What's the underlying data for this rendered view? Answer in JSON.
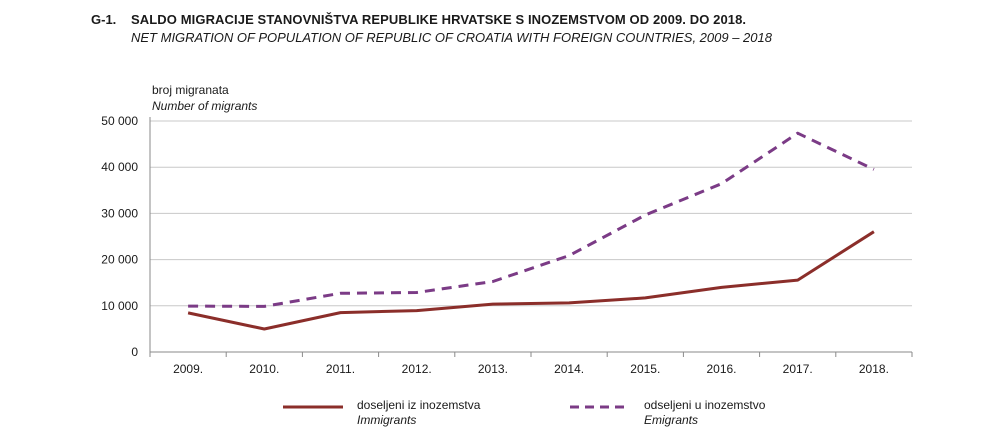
{
  "header": {
    "figure_label": "G-1.",
    "title": "SALDO MIGRACIJE STANOVNIŠTVA REPUBLIKE HRVATSKE S INOZEMSTVOM OD 2009. DO 2018.",
    "subtitle": "NET MIGRATION OF POPULATION OF REPUBLIC OF CROATIA  WITH FOREIGN COUNTRIES, 2009 – 2018"
  },
  "chart_data": {
    "type": "line",
    "title": "SALDO MIGRACIJE STANOVNIŠTVA REPUBLIKE HRVATSKE S INOZEMSTVOM OD 2009. DO 2018.",
    "subtitle": "NET MIGRATION OF POPULATION OF REPUBLIC OF CROATIA  WITH FOREIGN COUNTRIES, 2009 – 2018",
    "ylabel": "broj migranata",
    "ylabel_en": "Number of migrants",
    "xlabel": "",
    "categories": [
      "2009.",
      "2010.",
      "2011.",
      "2012.",
      "2013.",
      "2014.",
      "2015.",
      "2016.",
      "2017.",
      "2018."
    ],
    "ylim": [
      0,
      50000
    ],
    "yticks": [
      0,
      10000,
      20000,
      30000,
      40000,
      50000
    ],
    "ytick_labels": [
      "0",
      "10 000",
      "20 000",
      "30 000",
      "40 000",
      "50 000"
    ],
    "grid": "horizontal",
    "legend_position": "bottom",
    "series": [
      {
        "name": "doseljeni iz inozemstva",
        "name_en": "Immigrants",
        "color": "#8b2e2a",
        "style": "solid",
        "values": [
          8468,
          4985,
          8534,
          8959,
          10378,
          10638,
          11706,
          13985,
          15553,
          26029
        ]
      },
      {
        "name": "odseljeni u inozemstvo",
        "name_en": "Emigrants",
        "color": "#7b3b86",
        "style": "dashed",
        "values": [
          9940,
          9860,
          12699,
          12877,
          15262,
          20858,
          29651,
          36436,
          47352,
          39515
        ]
      }
    ]
  }
}
